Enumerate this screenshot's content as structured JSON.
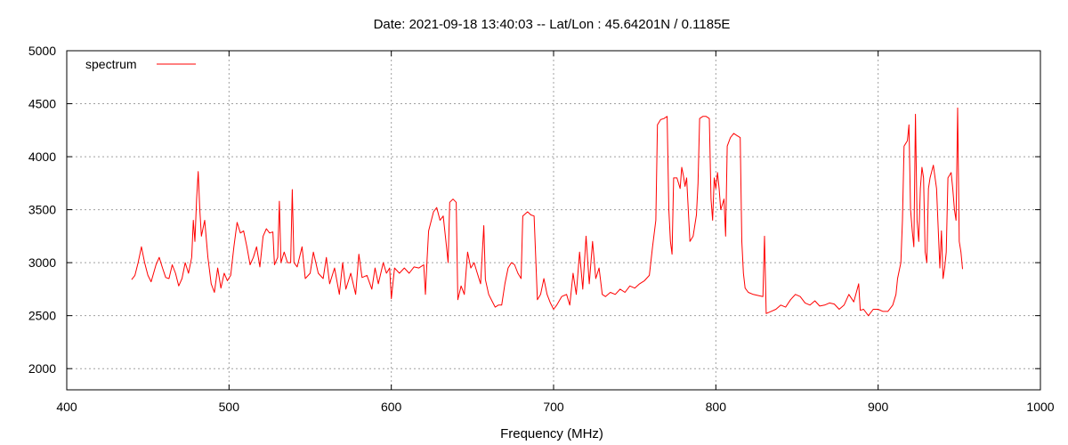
{
  "chart_data": {
    "type": "line",
    "title": "Date: 2021-09-18 13:40:03  --  Lat/Lon : 45.64201N / 0.1185E",
    "xlabel": "Frequency (MHz)",
    "ylabel": "",
    "xlim": [
      400,
      1000
    ],
    "ylim": [
      1800,
      5000
    ],
    "xticks": [
      400,
      500,
      600,
      700,
      800,
      900,
      1000
    ],
    "yticks": [
      2000,
      2500,
      3000,
      3500,
      4000,
      4500,
      5000
    ],
    "grid": true,
    "legend": {
      "position": "top-left"
    },
    "series": [
      {
        "name": "spectrum",
        "color": "#ff0000",
        "points": [
          [
            440,
            2840
          ],
          [
            442,
            2880
          ],
          [
            444,
            3000
          ],
          [
            446,
            3150
          ],
          [
            448,
            3000
          ],
          [
            450,
            2880
          ],
          [
            452,
            2820
          ],
          [
            455,
            2980
          ],
          [
            457,
            3050
          ],
          [
            459,
            2950
          ],
          [
            461,
            2860
          ],
          [
            463,
            2850
          ],
          [
            465,
            2980
          ],
          [
            467,
            2900
          ],
          [
            469,
            2780
          ],
          [
            471,
            2850
          ],
          [
            473,
            3000
          ],
          [
            475,
            2900
          ],
          [
            477,
            3050
          ],
          [
            478,
            3400
          ],
          [
            479,
            3200
          ],
          [
            480,
            3600
          ],
          [
            481,
            3860
          ],
          [
            482,
            3500
          ],
          [
            483,
            3250
          ],
          [
            485,
            3400
          ],
          [
            487,
            3050
          ],
          [
            489,
            2800
          ],
          [
            491,
            2720
          ],
          [
            493,
            2950
          ],
          [
            495,
            2760
          ],
          [
            497,
            2900
          ],
          [
            499,
            2830
          ],
          [
            501,
            2880
          ],
          [
            503,
            3150
          ],
          [
            505,
            3380
          ],
          [
            507,
            3280
          ],
          [
            509,
            3300
          ],
          [
            511,
            3150
          ],
          [
            513,
            2980
          ],
          [
            515,
            3050
          ],
          [
            517,
            3150
          ],
          [
            519,
            2960
          ],
          [
            521,
            3250
          ],
          [
            523,
            3320
          ],
          [
            525,
            3280
          ],
          [
            527,
            3290
          ],
          [
            528,
            2980
          ],
          [
            530,
            3050
          ],
          [
            531,
            3580
          ],
          [
            532,
            3000
          ],
          [
            534,
            3100
          ],
          [
            536,
            3000
          ],
          [
            538,
            3000
          ],
          [
            539,
            3690
          ],
          [
            540,
            3000
          ],
          [
            542,
            2960
          ],
          [
            545,
            3150
          ],
          [
            547,
            2850
          ],
          [
            550,
            2900
          ],
          [
            552,
            3100
          ],
          [
            555,
            2900
          ],
          [
            558,
            2850
          ],
          [
            560,
            3050
          ],
          [
            562,
            2800
          ],
          [
            565,
            2950
          ],
          [
            568,
            2700
          ],
          [
            570,
            3000
          ],
          [
            572,
            2750
          ],
          [
            575,
            2900
          ],
          [
            578,
            2700
          ],
          [
            580,
            3080
          ],
          [
            582,
            2860
          ],
          [
            585,
            2880
          ],
          [
            588,
            2750
          ],
          [
            590,
            2950
          ],
          [
            592,
            2800
          ],
          [
            595,
            3000
          ],
          [
            597,
            2900
          ],
          [
            599,
            2950
          ],
          [
            600,
            2660
          ],
          [
            602,
            2950
          ],
          [
            605,
            2900
          ],
          [
            608,
            2950
          ],
          [
            611,
            2900
          ],
          [
            614,
            2960
          ],
          [
            617,
            2950
          ],
          [
            620,
            2980
          ],
          [
            621,
            2700
          ],
          [
            622,
            3020
          ],
          [
            623,
            3300
          ],
          [
            626,
            3480
          ],
          [
            628,
            3520
          ],
          [
            630,
            3400
          ],
          [
            632,
            3440
          ],
          [
            634,
            3150
          ],
          [
            635,
            3000
          ],
          [
            636,
            3570
          ],
          [
            638,
            3600
          ],
          [
            640,
            3570
          ],
          [
            641,
            2650
          ],
          [
            643,
            2780
          ],
          [
            645,
            2700
          ],
          [
            647,
            3100
          ],
          [
            649,
            2950
          ],
          [
            651,
            3000
          ],
          [
            653,
            2900
          ],
          [
            655,
            2800
          ],
          [
            657,
            3350
          ],
          [
            658,
            2840
          ],
          [
            660,
            2700
          ],
          [
            662,
            2640
          ],
          [
            664,
            2580
          ],
          [
            666,
            2600
          ],
          [
            668,
            2600
          ],
          [
            670,
            2800
          ],
          [
            672,
            2950
          ],
          [
            674,
            3000
          ],
          [
            676,
            2980
          ],
          [
            678,
            2900
          ],
          [
            680,
            2850
          ],
          [
            681,
            3440
          ],
          [
            684,
            3480
          ],
          [
            686,
            3450
          ],
          [
            688,
            3440
          ],
          [
            690,
            2650
          ],
          [
            692,
            2700
          ],
          [
            694,
            2850
          ],
          [
            696,
            2700
          ],
          [
            698,
            2620
          ],
          [
            700,
            2560
          ],
          [
            702,
            2600
          ],
          [
            705,
            2680
          ],
          [
            708,
            2700
          ],
          [
            710,
            2600
          ],
          [
            712,
            2900
          ],
          [
            714,
            2700
          ],
          [
            716,
            3100
          ],
          [
            718,
            2750
          ],
          [
            720,
            3250
          ],
          [
            722,
            2800
          ],
          [
            724,
            3200
          ],
          [
            726,
            2850
          ],
          [
            728,
            2950
          ],
          [
            730,
            2700
          ],
          [
            732,
            2680
          ],
          [
            735,
            2720
          ],
          [
            738,
            2700
          ],
          [
            741,
            2750
          ],
          [
            744,
            2720
          ],
          [
            747,
            2780
          ],
          [
            750,
            2760
          ],
          [
            753,
            2800
          ],
          [
            756,
            2830
          ],
          [
            759,
            2880
          ],
          [
            761,
            3150
          ],
          [
            763,
            3400
          ],
          [
            764,
            4300
          ],
          [
            766,
            4350
          ],
          [
            768,
            4360
          ],
          [
            770,
            4380
          ],
          [
            771,
            3500
          ],
          [
            772,
            3200
          ],
          [
            773,
            3080
          ],
          [
            774,
            3800
          ],
          [
            776,
            3800
          ],
          [
            778,
            3700
          ],
          [
            779,
            3900
          ],
          [
            780,
            3820
          ],
          [
            781,
            3720
          ],
          [
            782,
            3800
          ],
          [
            784,
            3200
          ],
          [
            786,
            3250
          ],
          [
            788,
            3450
          ],
          [
            789,
            3750
          ],
          [
            790,
            4360
          ],
          [
            792,
            4380
          ],
          [
            794,
            4380
          ],
          [
            796,
            4360
          ],
          [
            797,
            3600
          ],
          [
            798,
            3400
          ],
          [
            799,
            3800
          ],
          [
            800,
            3700
          ],
          [
            801,
            3850
          ],
          [
            802,
            3700
          ],
          [
            803,
            3500
          ],
          [
            805,
            3600
          ],
          [
            806,
            3250
          ],
          [
            807,
            4100
          ],
          [
            809,
            4180
          ],
          [
            811,
            4220
          ],
          [
            813,
            4200
          ],
          [
            815,
            4180
          ],
          [
            816,
            3200
          ],
          [
            817,
            2900
          ],
          [
            818,
            2760
          ],
          [
            820,
            2720
          ],
          [
            823,
            2700
          ],
          [
            826,
            2690
          ],
          [
            829,
            2680
          ],
          [
            830,
            3250
          ],
          [
            831,
            2520
          ],
          [
            834,
            2540
          ],
          [
            837,
            2560
          ],
          [
            840,
            2600
          ],
          [
            843,
            2580
          ],
          [
            846,
            2650
          ],
          [
            849,
            2700
          ],
          [
            852,
            2680
          ],
          [
            855,
            2620
          ],
          [
            858,
            2600
          ],
          [
            861,
            2640
          ],
          [
            864,
            2590
          ],
          [
            867,
            2600
          ],
          [
            870,
            2620
          ],
          [
            873,
            2610
          ],
          [
            876,
            2560
          ],
          [
            879,
            2600
          ],
          [
            882,
            2700
          ],
          [
            885,
            2630
          ],
          [
            888,
            2800
          ],
          [
            889,
            2550
          ],
          [
            891,
            2560
          ],
          [
            894,
            2500
          ],
          [
            897,
            2560
          ],
          [
            900,
            2560
          ],
          [
            903,
            2540
          ],
          [
            906,
            2540
          ],
          [
            909,
            2600
          ],
          [
            911,
            2700
          ],
          [
            912,
            2850
          ],
          [
            914,
            3000
          ],
          [
            915,
            3400
          ],
          [
            916,
            4100
          ],
          [
            918,
            4150
          ],
          [
            919,
            4300
          ],
          [
            920,
            3500
          ],
          [
            921,
            3300
          ],
          [
            922,
            3150
          ],
          [
            923,
            4400
          ],
          [
            924,
            3400
          ],
          [
            925,
            3200
          ],
          [
            926,
            3700
          ],
          [
            927,
            3900
          ],
          [
            928,
            3800
          ],
          [
            929,
            3100
          ],
          [
            930,
            3000
          ],
          [
            931,
            3700
          ],
          [
            932,
            3800
          ],
          [
            934,
            3920
          ],
          [
            936,
            3700
          ],
          [
            938,
            2950
          ],
          [
            939,
            3300
          ],
          [
            940,
            2850
          ],
          [
            941,
            2950
          ],
          [
            942,
            3100
          ],
          [
            943,
            3800
          ],
          [
            945,
            3850
          ],
          [
            946,
            3700
          ],
          [
            947,
            3500
          ],
          [
            948,
            3400
          ],
          [
            949,
            4460
          ],
          [
            950,
            3200
          ],
          [
            951,
            3100
          ],
          [
            952,
            2940
          ]
        ]
      }
    ]
  }
}
